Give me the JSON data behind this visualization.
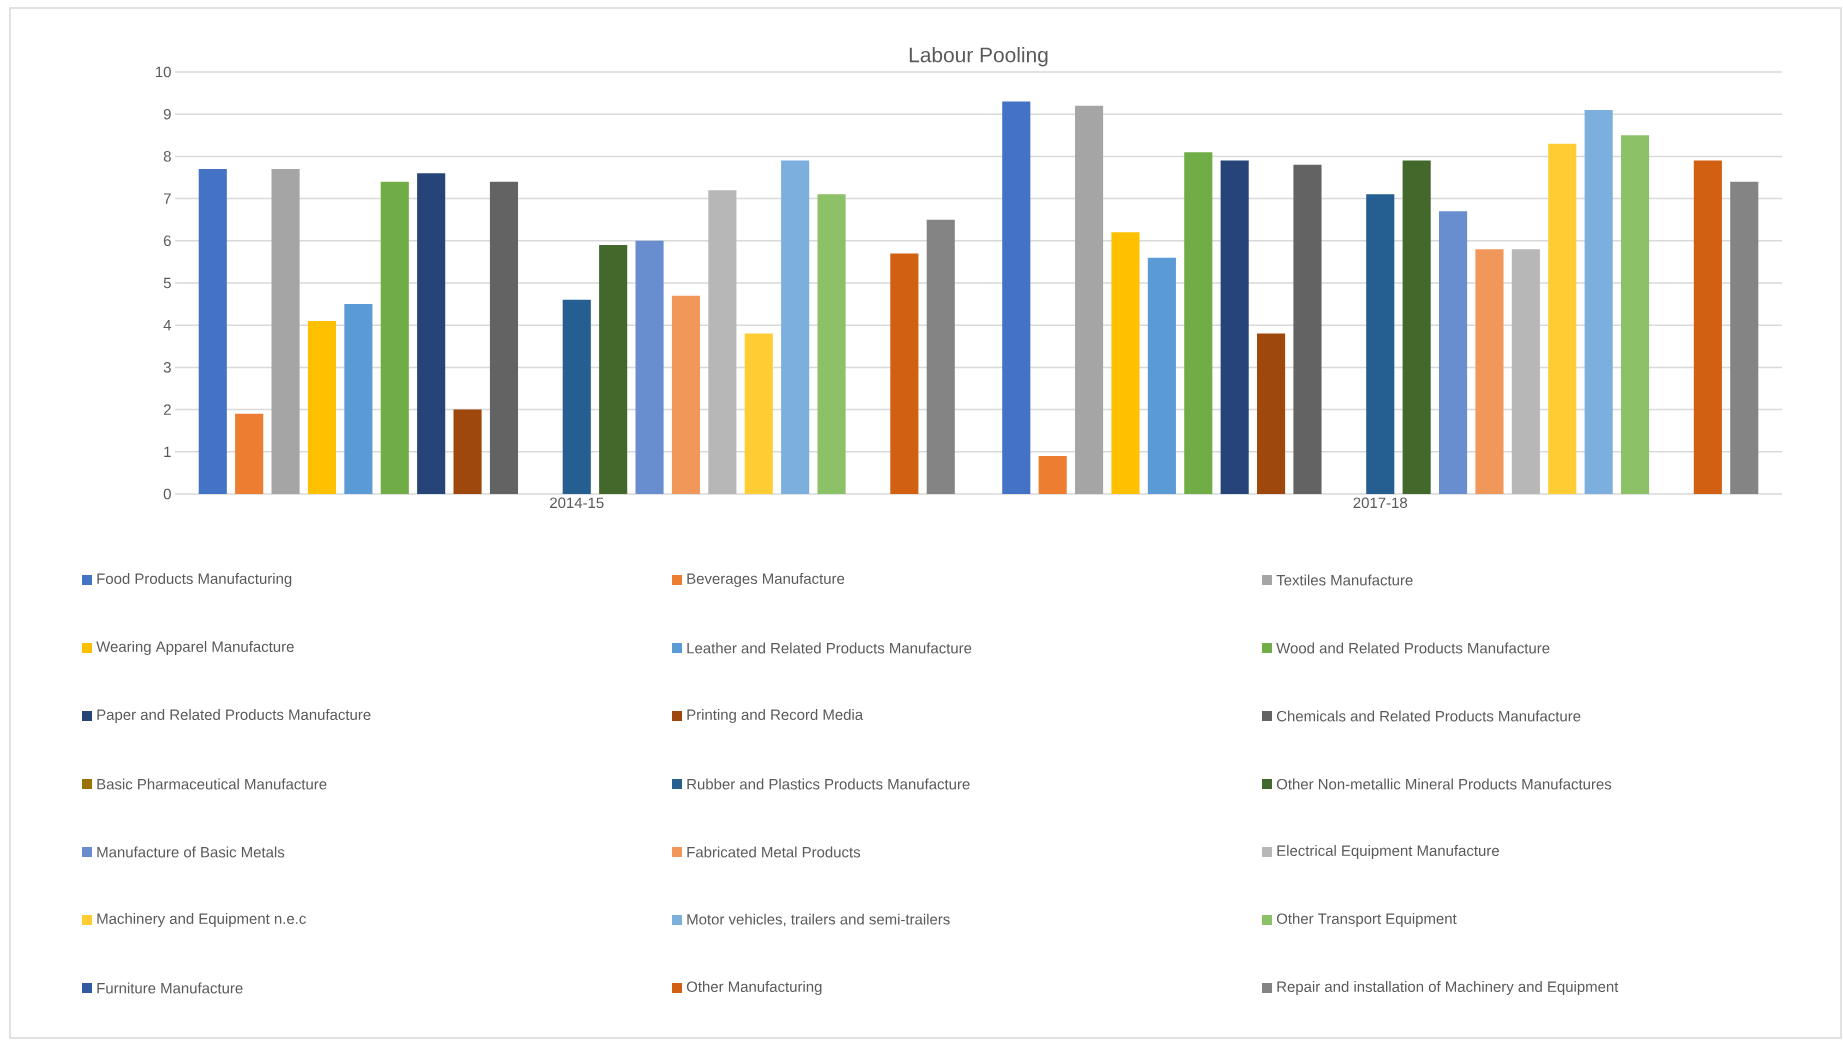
{
  "chart_data": {
    "type": "bar",
    "title": "Labour Pooling",
    "categories": [
      "2014-15",
      "2017-18"
    ],
    "series": [
      {
        "name": "Food Products Manufacturing",
        "color": "#4472c4",
        "values": [
          7.7,
          9.3
        ]
      },
      {
        "name": "Beverages Manufacture",
        "color": "#ed7d31",
        "values": [
          1.9,
          0.9
        ]
      },
      {
        "name": "Textiles Manufacture",
        "color": "#a5a5a5",
        "values": [
          7.7,
          9.2
        ]
      },
      {
        "name": "Wearing Apparel Manufacture",
        "color": "#ffc000",
        "values": [
          4.1,
          6.2
        ]
      },
      {
        "name": "Leather and Related Products Manufacture",
        "color": "#5b9bd5",
        "values": [
          4.5,
          5.6
        ]
      },
      {
        "name": "Wood and Related Products Manufacture",
        "color": "#70ad47",
        "values": [
          7.4,
          8.1
        ]
      },
      {
        "name": "Paper and Related Products Manufacture",
        "color": "#264478",
        "values": [
          7.6,
          7.9
        ]
      },
      {
        "name": "Printing and Record Media",
        "color": "#9e480e",
        "values": [
          2.0,
          3.8
        ]
      },
      {
        "name": "Chemicals and Related Products Manufacture",
        "color": "#636363",
        "values": [
          7.4,
          7.8
        ]
      },
      {
        "name": "Basic Pharmaceutical Manufacture",
        "color": "#997300",
        "values": [
          null,
          null
        ]
      },
      {
        "name": "Rubber and Plastics Products Manufacture",
        "color": "#255e91",
        "values": [
          4.6,
          7.1
        ]
      },
      {
        "name": "Other Non-metallic Mineral Products Manufactures",
        "color": "#43682b",
        "values": [
          5.9,
          7.9
        ]
      },
      {
        "name": "Manufacture of Basic Metals",
        "color": "#698ed0",
        "values": [
          6.0,
          6.7
        ]
      },
      {
        "name": "Fabricated Metal Products",
        "color": "#f1975a",
        "values": [
          4.7,
          5.8
        ]
      },
      {
        "name": "Electrical Equipment Manufacture",
        "color": "#b7b7b7",
        "values": [
          7.2,
          5.8
        ]
      },
      {
        "name": "Machinery and Equipment n.e.c",
        "color": "#ffcd33",
        "values": [
          3.8,
          8.3
        ]
      },
      {
        "name": "Motor vehicles, trailers and semi-trailers",
        "color": "#7cafdd",
        "values": [
          7.9,
          9.1
        ]
      },
      {
        "name": "Other Transport Equipment",
        "color": "#8cc168",
        "values": [
          7.1,
          8.5
        ]
      },
      {
        "name": "Furniture Manufacture",
        "color": "#335aa1",
        "values": [
          null,
          null
        ]
      },
      {
        "name": "Other Manufacturing",
        "color": "#d26012",
        "values": [
          5.7,
          7.9
        ]
      },
      {
        "name": "Repair and installation of Machinery and Equipment",
        "color": "#848484",
        "values": [
          6.5,
          7.4
        ]
      }
    ],
    "ylim": [
      0,
      10
    ],
    "yticks": [
      0,
      1,
      2,
      3,
      4,
      5,
      6,
      7,
      8,
      9,
      10
    ],
    "grid": "y",
    "legend": "bottom"
  }
}
